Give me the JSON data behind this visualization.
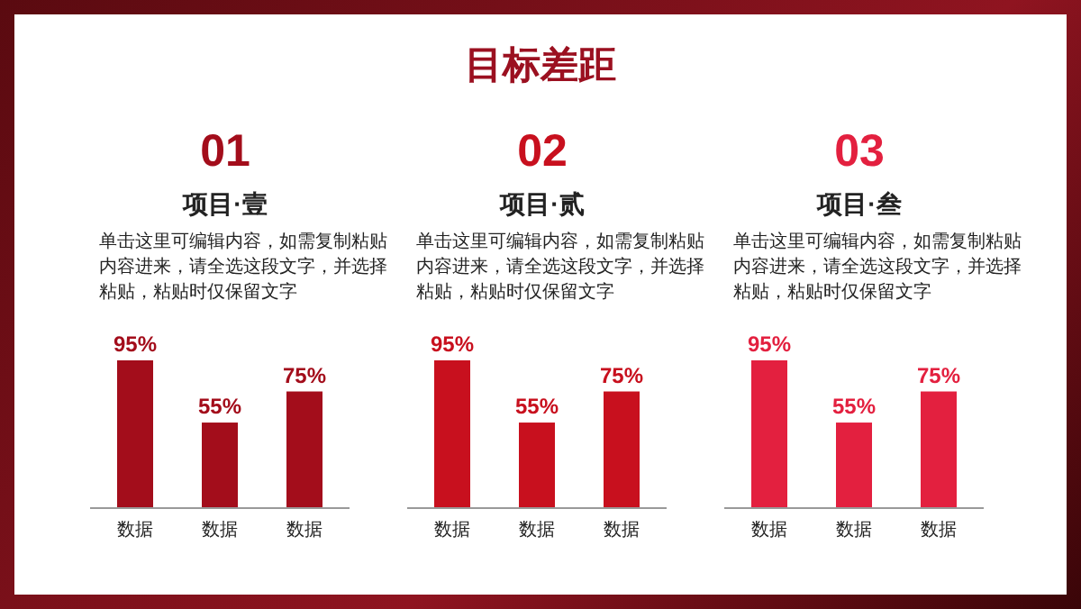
{
  "chart_data": [
    {
      "type": "other",
      "title": "目标差距"
    },
    {
      "type": "bar",
      "title": "01",
      "subtitle": "项目·壹",
      "annotations": [
        "单击这里可编辑内容，如需复制粘贴内容进来，请全选这段文字，并选择粘贴，粘贴时仅保留文字"
      ],
      "categories": [
        "数据",
        "数据",
        "数据"
      ],
      "values": [
        95,
        55,
        75
      ],
      "value_labels": [
        "95%",
        "55%",
        "75%"
      ],
      "color": "#a30d1b",
      "tick_labels": "x"
    },
    {
      "type": "bar",
      "title": "02",
      "subtitle": "项目·贰",
      "annotations": [
        "单击这里可编辑内容，如需复制粘贴内容进来，请全选这段文字，并选择粘贴，粘贴时仅保留文字"
      ],
      "categories": [
        "数据",
        "数据",
        "数据"
      ],
      "values": [
        95,
        55,
        75
      ],
      "value_labels": [
        "95%",
        "55%",
        "75%"
      ],
      "color": "#c8101e",
      "tick_labels": "x"
    },
    {
      "type": "bar",
      "title": "03",
      "subtitle": "项目·叁",
      "annotations": [
        "单击这里可编辑内容，如需复制粘贴内容进来，请全选这段文字，并选择粘贴，粘贴时仅保留文字"
      ],
      "categories": [
        "数据",
        "数据",
        "数据"
      ],
      "values": [
        95,
        55,
        75
      ],
      "value_labels": [
        "95%",
        "55%",
        "75%"
      ],
      "color": "#e3203f",
      "tick_labels": "x"
    }
  ]
}
